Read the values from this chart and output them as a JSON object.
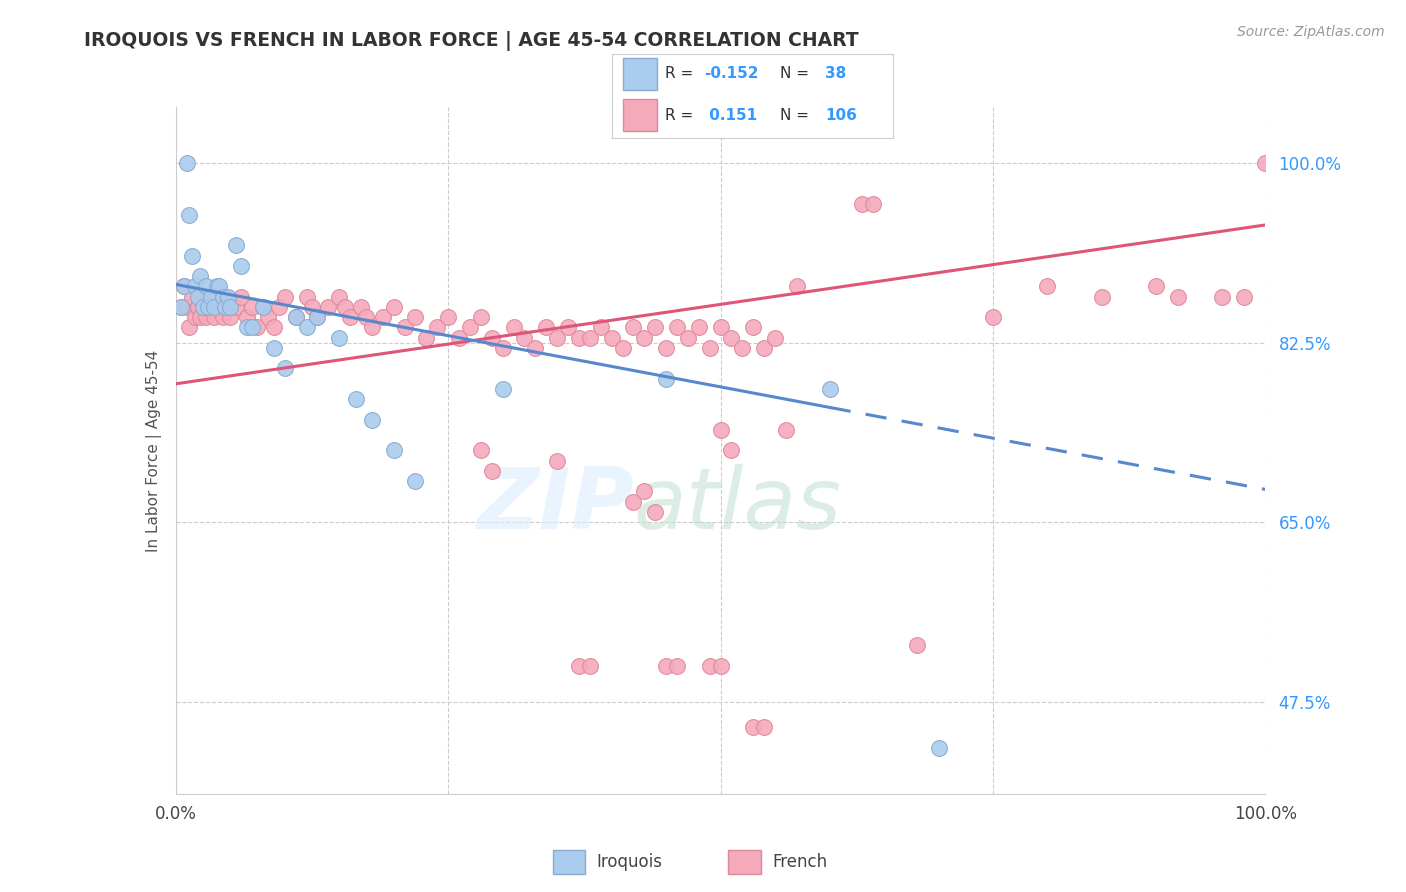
{
  "title": "IROQUOIS VS FRENCH IN LABOR FORCE | AGE 45-54 CORRELATION CHART",
  "source_text": "Source: ZipAtlas.com",
  "ylabel": "In Labor Force | Age 45-54",
  "watermark_zip": "ZIP",
  "watermark_atlas": "atlas",
  "xlim": [
    0.0,
    1.0
  ],
  "ylim": [
    0.385,
    1.055
  ],
  "y_tick_values": [
    0.475,
    0.65,
    0.825,
    1.0
  ],
  "y_tick_labels": [
    "47.5%",
    "65.0%",
    "82.5%",
    "100.0%"
  ],
  "grid_color": "#cccccc",
  "background_color": "#ffffff",
  "iroquois_color": "#aaccee",
  "iroquois_edge_color": "#88aacc",
  "french_color": "#f5aabc",
  "french_edge_color": "#dd8899",
  "iroquois_line_color": "#5588cc",
  "french_line_color": "#dd5577",
  "legend_R_iroquois": "-0.152",
  "legend_N_iroquois": "38",
  "legend_R_french": "0.151",
  "legend_N_french": "106",
  "iroquois_line_intercept": 0.882,
  "iroquois_line_slope": -0.2,
  "french_line_intercept": 0.785,
  "french_line_slope": 0.155,
  "iroquois_x": [
    0.005,
    0.008,
    0.01,
    0.012,
    0.015,
    0.018,
    0.02,
    0.022,
    0.025,
    0.028,
    0.03,
    0.032,
    0.035,
    0.038,
    0.04,
    0.043,
    0.045,
    0.048,
    0.05,
    0.055,
    0.06,
    0.065,
    0.07,
    0.08,
    0.09,
    0.1,
    0.11,
    0.12,
    0.13,
    0.15,
    0.165,
    0.18,
    0.2,
    0.22,
    0.3,
    0.45,
    0.6,
    0.7
  ],
  "iroquois_y": [
    0.86,
    0.88,
    1.0,
    0.95,
    0.91,
    0.88,
    0.87,
    0.89,
    0.86,
    0.88,
    0.86,
    0.87,
    0.86,
    0.88,
    0.88,
    0.87,
    0.86,
    0.87,
    0.86,
    0.92,
    0.9,
    0.84,
    0.84,
    0.86,
    0.82,
    0.8,
    0.85,
    0.84,
    0.85,
    0.83,
    0.77,
    0.75,
    0.72,
    0.69,
    0.78,
    0.79,
    0.78,
    0.43
  ],
  "french_x": [
    0.005,
    0.008,
    0.01,
    0.012,
    0.015,
    0.018,
    0.02,
    0.022,
    0.025,
    0.028,
    0.03,
    0.032,
    0.035,
    0.038,
    0.04,
    0.043,
    0.045,
    0.048,
    0.05,
    0.055,
    0.06,
    0.065,
    0.07,
    0.075,
    0.08,
    0.085,
    0.09,
    0.095,
    0.1,
    0.11,
    0.12,
    0.125,
    0.13,
    0.14,
    0.15,
    0.155,
    0.16,
    0.17,
    0.175,
    0.18,
    0.19,
    0.2,
    0.21,
    0.22,
    0.23,
    0.24,
    0.25,
    0.26,
    0.27,
    0.28,
    0.29,
    0.3,
    0.31,
    0.32,
    0.33,
    0.34,
    0.35,
    0.36,
    0.37,
    0.38,
    0.39,
    0.4,
    0.41,
    0.42,
    0.43,
    0.44,
    0.45,
    0.46,
    0.47,
    0.48,
    0.49,
    0.5,
    0.51,
    0.52,
    0.53,
    0.54,
    0.55,
    0.56,
    0.28,
    0.29,
    0.35,
    0.42,
    0.43,
    0.44,
    0.5,
    0.51,
    0.57,
    0.63,
    0.64,
    0.68,
    0.75,
    0.8,
    0.85,
    0.9,
    0.92,
    0.96,
    0.98,
    1.0,
    0.37,
    0.38,
    0.45,
    0.46,
    0.49,
    0.5,
    0.53,
    0.54
  ],
  "french_y": [
    0.86,
    0.88,
    0.86,
    0.84,
    0.87,
    0.85,
    0.86,
    0.85,
    0.87,
    0.85,
    0.87,
    0.86,
    0.85,
    0.87,
    0.86,
    0.85,
    0.87,
    0.86,
    0.85,
    0.86,
    0.87,
    0.85,
    0.86,
    0.84,
    0.86,
    0.85,
    0.84,
    0.86,
    0.87,
    0.85,
    0.87,
    0.86,
    0.85,
    0.86,
    0.87,
    0.86,
    0.85,
    0.86,
    0.85,
    0.84,
    0.85,
    0.86,
    0.84,
    0.85,
    0.83,
    0.84,
    0.85,
    0.83,
    0.84,
    0.85,
    0.83,
    0.82,
    0.84,
    0.83,
    0.82,
    0.84,
    0.83,
    0.84,
    0.83,
    0.83,
    0.84,
    0.83,
    0.82,
    0.84,
    0.83,
    0.84,
    0.82,
    0.84,
    0.83,
    0.84,
    0.82,
    0.84,
    0.83,
    0.82,
    0.84,
    0.82,
    0.83,
    0.74,
    0.72,
    0.7,
    0.71,
    0.67,
    0.68,
    0.66,
    0.74,
    0.72,
    0.88,
    0.96,
    0.96,
    0.53,
    0.85,
    0.88,
    0.87,
    0.88,
    0.87,
    0.87,
    0.87,
    1.0,
    0.51,
    0.51,
    0.51,
    0.51,
    0.51,
    0.51,
    0.45,
    0.45
  ]
}
